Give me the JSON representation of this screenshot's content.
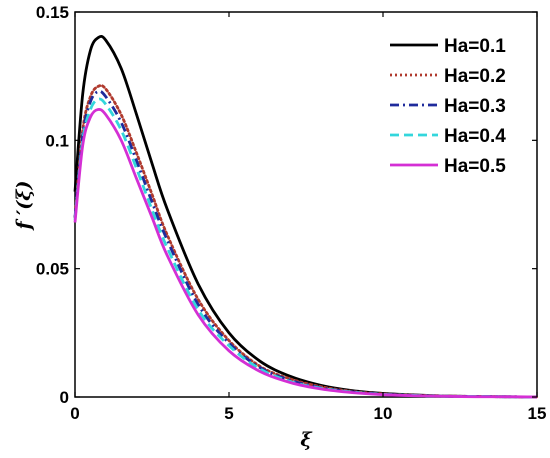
{
  "chart_data": {
    "type": "line",
    "title": "",
    "xlabel": "ξ",
    "ylabel": "f ′(ξ)",
    "xlim": [
      0,
      15
    ],
    "ylim": [
      0,
      0.15
    ],
    "xticks": [
      0,
      5,
      10,
      15
    ],
    "xtick_labels": [
      "0",
      "5",
      "10",
      "15"
    ],
    "yticks": [
      0,
      0.05,
      0.1,
      0.15
    ],
    "ytick_labels": [
      "0",
      "0.05",
      "0.1",
      "0.15"
    ],
    "grid": false,
    "legend_position": "top-right",
    "series": [
      {
        "name": "Ha=0.1",
        "color": "#000000",
        "dash": "solid",
        "x": [
          0,
          0.25,
          0.5,
          0.75,
          1,
          1.5,
          2,
          2.5,
          3,
          4,
          5,
          6,
          7,
          8,
          9,
          10,
          11,
          12,
          13,
          14,
          15
        ],
        "y": [
          0.08,
          0.118,
          0.135,
          0.14,
          0.139,
          0.128,
          0.11,
          0.091,
          0.073,
          0.044,
          0.025,
          0.014,
          0.008,
          0.0045,
          0.0025,
          0.0014,
          0.0008,
          0.0004,
          0.0002,
          0.0001,
          0.0
        ]
      },
      {
        "name": "Ha=0.2",
        "color": "#b03a2e",
        "dash": "dot",
        "x": [
          0,
          0.25,
          0.5,
          0.75,
          1,
          1.5,
          2,
          2.5,
          3,
          4,
          5,
          6,
          7,
          8,
          9,
          10,
          11,
          12,
          13,
          14,
          15
        ],
        "y": [
          0.07,
          0.104,
          0.117,
          0.121,
          0.12,
          0.11,
          0.095,
          0.079,
          0.063,
          0.038,
          0.022,
          0.012,
          0.007,
          0.004,
          0.0022,
          0.0012,
          0.0007,
          0.0004,
          0.0002,
          0.0001,
          0.0
        ]
      },
      {
        "name": "Ha=0.3",
        "color": "#1f2b9c",
        "dash": "dashdot",
        "x": [
          0,
          0.25,
          0.5,
          0.75,
          1,
          1.5,
          2,
          2.5,
          3,
          4,
          5,
          6,
          7,
          8,
          9,
          10,
          11,
          12,
          13,
          14,
          15
        ],
        "y": [
          0.07,
          0.102,
          0.115,
          0.119,
          0.117,
          0.107,
          0.092,
          0.076,
          0.061,
          0.036,
          0.021,
          0.0115,
          0.0065,
          0.0036,
          0.002,
          0.0011,
          0.0006,
          0.0003,
          0.0002,
          0.0001,
          0.0
        ]
      },
      {
        "name": "Ha=0.4",
        "color": "#33d6dc",
        "dash": "dash",
        "x": [
          0,
          0.25,
          0.5,
          0.75,
          1,
          1.5,
          2,
          2.5,
          3,
          4,
          5,
          6,
          7,
          8,
          9,
          10,
          11,
          12,
          13,
          14,
          15
        ],
        "y": [
          0.069,
          0.1,
          0.112,
          0.116,
          0.114,
          0.104,
          0.089,
          0.073,
          0.058,
          0.034,
          0.02,
          0.011,
          0.006,
          0.0034,
          0.0019,
          0.001,
          0.0006,
          0.0003,
          0.0002,
          0.0001,
          0.0
        ]
      },
      {
        "name": "Ha=0.5",
        "color": "#d42fd4",
        "dash": "solid",
        "x": [
          0,
          0.25,
          0.5,
          0.75,
          1,
          1.5,
          2,
          2.5,
          3,
          4,
          5,
          6,
          7,
          8,
          9,
          10,
          11,
          12,
          13,
          14,
          15
        ],
        "y": [
          0.068,
          0.098,
          0.109,
          0.112,
          0.11,
          0.1,
          0.085,
          0.07,
          0.055,
          0.032,
          0.018,
          0.01,
          0.0056,
          0.0031,
          0.0017,
          0.0009,
          0.0005,
          0.0003,
          0.0001,
          0.0001,
          0.0
        ]
      }
    ]
  }
}
